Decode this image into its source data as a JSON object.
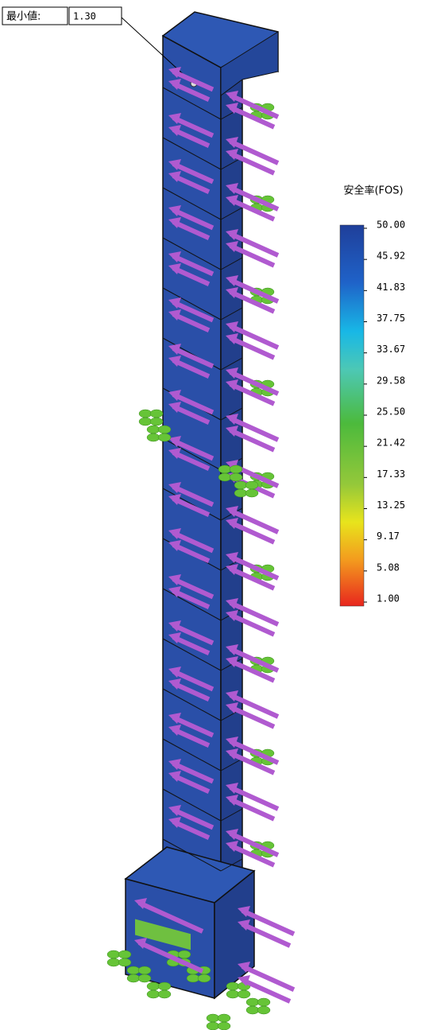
{
  "min_marker": {
    "label": "最小値:",
    "value": "1.30"
  },
  "legend": {
    "title": "安全率(FOS)",
    "ticks": [
      "50.00",
      "45.92",
      "41.83",
      "37.75",
      "33.67",
      "29.58",
      "25.50",
      "21.42",
      "17.33",
      "13.25",
      "9.17",
      "5.08",
      "1.00"
    ]
  }
}
